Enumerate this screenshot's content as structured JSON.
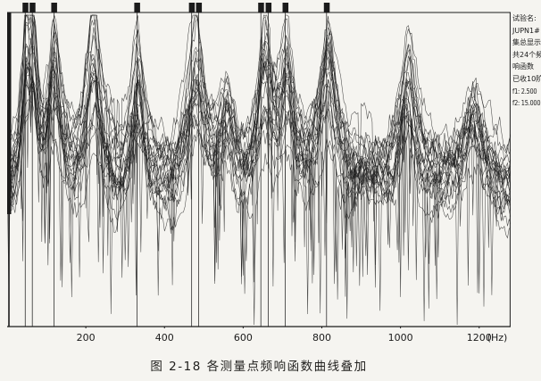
{
  "page": {
    "background": "#f5f4f0",
    "ink": "#1b1b1b"
  },
  "info_panel": {
    "lines": [
      "试验名:",
      "JUPN1#",
      "集总显示",
      "共24个频",
      "响函数",
      "已收10阶",
      "f1: 2.500",
      "f2: 15.000"
    ]
  },
  "caption": "图 2-18  各测量点频响函数曲线叠加",
  "chart_data": {
    "type": "line",
    "title": "各测量点频响函数曲线叠加",
    "xlabel": "(Hz)",
    "ylabel": "",
    "xlim": [
      0,
      1280
    ],
    "x_ticks": [
      200,
      400,
      600,
      800,
      1000,
      1200
    ],
    "x_unit_label": "(Hz)",
    "grid": false,
    "legend": "none",
    "num_curves": 24,
    "mode_marker_frequencies_hz": [
      46,
      64,
      119,
      330,
      469,
      487,
      645,
      664,
      707,
      812
    ],
    "resonance_peaks": [
      {
        "f": 48,
        "h": 0.75,
        "w": 12
      },
      {
        "f": 66,
        "h": 0.8,
        "w": 14
      },
      {
        "f": 120,
        "h": 0.9,
        "w": 18
      },
      {
        "f": 220,
        "h": 0.95,
        "w": 22
      },
      {
        "f": 332,
        "h": 0.85,
        "w": 20
      },
      {
        "f": 480,
        "h": 0.9,
        "w": 26
      },
      {
        "f": 560,
        "h": 0.55,
        "w": 20
      },
      {
        "f": 655,
        "h": 0.9,
        "w": 22
      },
      {
        "f": 712,
        "h": 0.75,
        "w": 20
      },
      {
        "f": 815,
        "h": 1.0,
        "w": 24
      },
      {
        "f": 1020,
        "h": 0.9,
        "w": 26
      },
      {
        "f": 1185,
        "h": 0.65,
        "w": 32
      }
    ],
    "annotation": "24 overlaid frequency-response-function curves; 10 identified modes marked by vertical lines with black squares at top"
  }
}
